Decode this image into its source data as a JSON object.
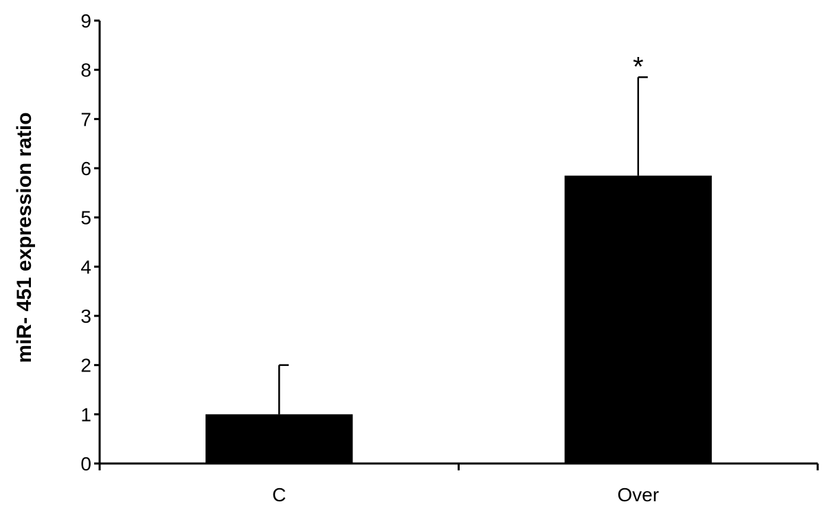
{
  "chart_data": {
    "type": "bar",
    "categories": [
      "C",
      "Over"
    ],
    "values": [
      1.0,
      5.85
    ],
    "error": [
      1.0,
      2.0
    ],
    "annotations": [
      "",
      "*"
    ],
    "ylabel": "miR- 451 expression ratio",
    "xlabel": "",
    "ylim": [
      0,
      9
    ],
    "yticks": [
      "0",
      "1",
      "2",
      "3",
      "4",
      "5",
      "6",
      "7",
      "8",
      "9"
    ],
    "bar_color": "#000000",
    "grid": false
  }
}
